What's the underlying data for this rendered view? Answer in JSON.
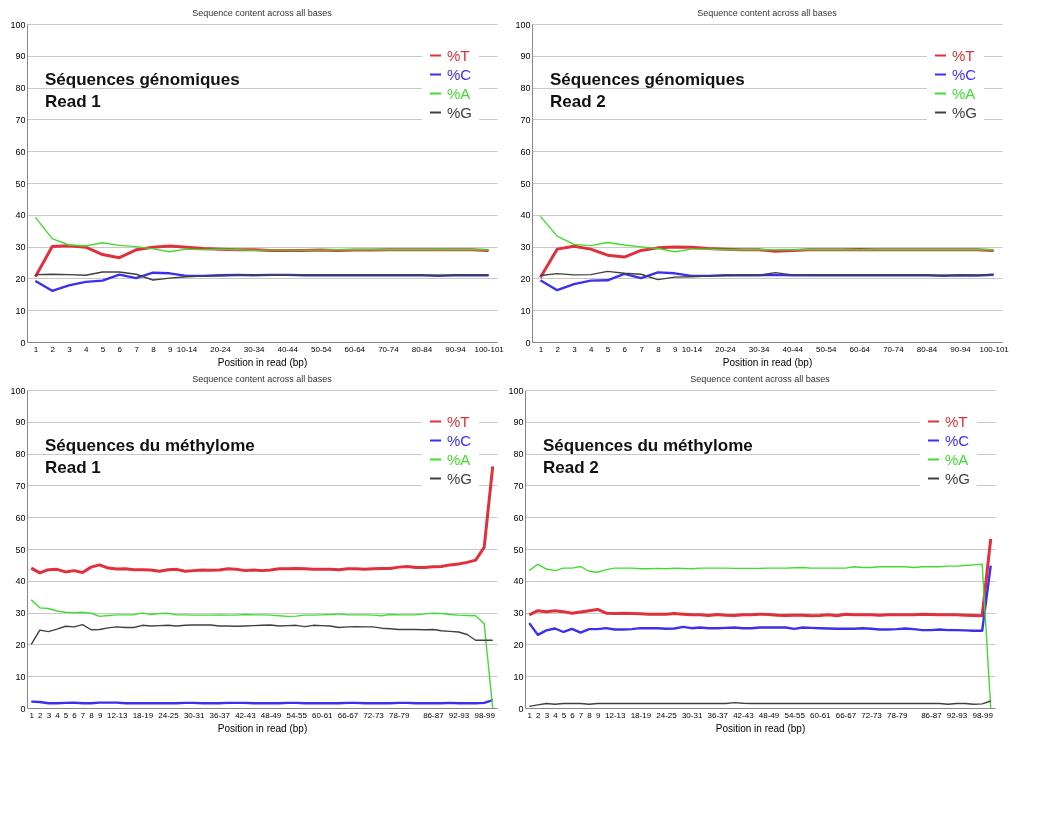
{
  "chart_data": [
    {
      "type": "line",
      "title": "Sequence content across all bases",
      "xlabel": "Position in read (bp)",
      "annotations": [
        "Séquences génomiques\nRead 1"
      ],
      "legend": "top right",
      "grid": "y",
      "ylim": [
        0,
        100
      ],
      "yticks": [
        0,
        10,
        20,
        30,
        40,
        50,
        60,
        70,
        80,
        90,
        100
      ],
      "categories": [
        "1",
        "2",
        "3",
        "4",
        "5",
        "6",
        "7",
        "8",
        "9",
        "10-14",
        null,
        "20-24",
        null,
        "30-34",
        null,
        "40-44",
        null,
        "50-54",
        null,
        "60-64",
        null,
        "70-74",
        null,
        "80-84",
        null,
        "90-94",
        null,
        "100-101"
      ],
      "series": [
        {
          "name": "%T",
          "color": "#e0303c",
          "values": [
            20.5,
            30,
            30.3,
            29.8,
            27.5,
            26.5,
            29,
            29.8,
            30.2,
            29.8,
            29.4,
            29.2,
            29,
            29,
            28.8,
            28.8,
            28.8,
            28.9,
            28.8,
            28.9,
            28.9,
            29,
            29,
            29,
            29,
            29,
            29,
            28.8
          ]
        },
        {
          "name": "%C",
          "color": "#3a30ee",
          "values": [
            19.2,
            16.1,
            17.8,
            18.9,
            19.3,
            21.2,
            20.1,
            21.8,
            21.6,
            20.8,
            20.8,
            21,
            21.1,
            21,
            21.1,
            21.1,
            21,
            21,
            21,
            21,
            21,
            21,
            21,
            21,
            20.8,
            21,
            21,
            21
          ]
        },
        {
          "name": "%A",
          "color": "#40dd30",
          "values": [
            39.2,
            32.5,
            30.5,
            30.2,
            31.2,
            30.4,
            30,
            29.3,
            28.4,
            29.2,
            29,
            29.2,
            29,
            28.8,
            28.9,
            28.9,
            28.8,
            28.9,
            29,
            29,
            29,
            29,
            29,
            29,
            29.1,
            29,
            29,
            29
          ]
        },
        {
          "name": "%G",
          "color": "#404040",
          "values": [
            21.2,
            21.3,
            21.2,
            21,
            22,
            22,
            21.3,
            19.5,
            20.1,
            20.5,
            20.7,
            20.8,
            21,
            21,
            21,
            21,
            21,
            21,
            21,
            21,
            21,
            21,
            21,
            21,
            21,
            21,
            21,
            21
          ]
        }
      ]
    },
    {
      "type": "line",
      "title": "Sequence content across all bases",
      "xlabel": "Position in read (bp)",
      "annotations": [
        "Séquences génomiques\nRead 2"
      ],
      "legend": "top right",
      "grid": "y",
      "ylim": [
        0,
        100
      ],
      "yticks": [
        0,
        10,
        20,
        30,
        40,
        50,
        60,
        70,
        80,
        90,
        100
      ],
      "categories": [
        "1",
        "2",
        "3",
        "4",
        "5",
        "6",
        "7",
        "8",
        "9",
        "10-14",
        null,
        "20-24",
        null,
        "30-34",
        null,
        "40-44",
        null,
        "50-54",
        null,
        "60-64",
        null,
        "70-74",
        null,
        "80-84",
        null,
        "90-94",
        null,
        "100-101"
      ],
      "series": [
        {
          "name": "%T",
          "color": "#e0303c",
          "values": [
            20.3,
            29.2,
            30.1,
            29.2,
            27.3,
            26.7,
            28.8,
            29.6,
            29.9,
            29.8,
            29.4,
            29.2,
            29,
            29,
            28.5,
            28.8,
            29,
            29,
            29,
            29.1,
            29,
            29,
            29,
            29,
            29,
            29,
            29,
            28.8
          ]
        },
        {
          "name": "%C",
          "color": "#3a30ee",
          "values": [
            19.4,
            16.3,
            18.2,
            19.3,
            19.4,
            21.4,
            20.1,
            21.9,
            21.6,
            20.8,
            20.8,
            21,
            21,
            21,
            21.1,
            21,
            21,
            21,
            21,
            21,
            21,
            21,
            21,
            21,
            20.8,
            21,
            20.9,
            21.1
          ]
        },
        {
          "name": "%A",
          "color": "#40dd30",
          "values": [
            39.5,
            33.3,
            30.7,
            30.3,
            31.3,
            30.5,
            29.9,
            29.4,
            28.4,
            29.2,
            29.2,
            29,
            29,
            29,
            29,
            29,
            29,
            29,
            29,
            29,
            29,
            29,
            29,
            29,
            29,
            29,
            29,
            29
          ]
        },
        {
          "name": "%G",
          "color": "#404040",
          "values": [
            20.9,
            21.5,
            21.1,
            21.2,
            22.2,
            21.6,
            21.3,
            19.6,
            20.4,
            20.5,
            20.7,
            20.9,
            21,
            21,
            21.8,
            21.1,
            21,
            21,
            21,
            21,
            21,
            21,
            21,
            21,
            21,
            21,
            21,
            21.3
          ]
        }
      ]
    },
    {
      "type": "line",
      "title": "Sequence content across all bases",
      "xlabel": "Position in read (bp)",
      "annotations": [
        "Séquences du méthylome\nRead 1"
      ],
      "legend": "top right",
      "grid": "y",
      "ylim": [
        0,
        100
      ],
      "yticks": [
        0,
        10,
        20,
        30,
        40,
        50,
        60,
        70,
        80,
        90,
        100
      ],
      "categories": [
        "1",
        "2",
        "3",
        "4",
        "5",
        "6",
        "7",
        "8",
        "9",
        null,
        "12-13",
        null,
        null,
        "18-19",
        null,
        null,
        "24-25",
        null,
        null,
        "30-31",
        null,
        null,
        "36-37",
        null,
        null,
        "42-43",
        null,
        null,
        "48-49",
        null,
        null,
        "54-55",
        null,
        null,
        "60-61",
        null,
        null,
        "66-67",
        null,
        null,
        "72-73",
        null,
        null,
        "78-79",
        null,
        null,
        null,
        "86-87",
        null,
        null,
        "92-93",
        null,
        null,
        "98-99",
        null
      ],
      "series": [
        {
          "name": "%T",
          "color": "#e0303c",
          "values": [
            44,
            42.5,
            43.5,
            43.6,
            42.8,
            43.2,
            42.6,
            44.3,
            45,
            44,
            43.7,
            43.8,
            43.5,
            43.5,
            43.4,
            43,
            43.5,
            43.6,
            43,
            43.2,
            43.4,
            43.3,
            43.4,
            43.8,
            43.6,
            43.2,
            43.4,
            43.2,
            43.4,
            43.8,
            43.8,
            43.9,
            43.8,
            43.6,
            43.6,
            43.6,
            43.5,
            43.8,
            43.8,
            43.6,
            43.8,
            43.9,
            43.9,
            44.3,
            44.5,
            44.2,
            44.2,
            44.4,
            44.5,
            45,
            45.3,
            45.8,
            46.5,
            50.5,
            76
          ]
        },
        {
          "name": "%C",
          "color": "#3a30ee",
          "values": [
            2,
            1.9,
            1.5,
            1.5,
            1.6,
            1.7,
            1.5,
            1.5,
            1.7,
            1.7,
            1.7,
            1.5,
            1.5,
            1.5,
            1.5,
            1.5,
            1.5,
            1.5,
            1.6,
            1.6,
            1.5,
            1.5,
            1.5,
            1.6,
            1.6,
            1.6,
            1.5,
            1.5,
            1.5,
            1.5,
            1.6,
            1.6,
            1.5,
            1.5,
            1.5,
            1.5,
            1.5,
            1.6,
            1.6,
            1.5,
            1.5,
            1.5,
            1.5,
            1.6,
            1.6,
            1.5,
            1.5,
            1.5,
            1.5,
            1.6,
            1.5,
            1.5,
            1.5,
            1.6,
            2.5
          ]
        },
        {
          "name": "%A",
          "color": "#40dd30",
          "values": [
            34,
            31.5,
            31.3,
            30.5,
            30.1,
            30,
            30.1,
            29.8,
            28.8,
            29.1,
            29.3,
            29.3,
            29.3,
            29.9,
            29.4,
            29.7,
            29.8,
            29.3,
            29.3,
            29.2,
            29.2,
            29.2,
            29.3,
            29.2,
            29.2,
            29.4,
            29.3,
            29.3,
            29.2,
            29,
            28.8,
            28.9,
            29.2,
            29.2,
            29.3,
            29.4,
            29.6,
            29.3,
            29.3,
            29.3,
            29.2,
            29,
            29.4,
            29.3,
            29.3,
            29.3,
            29.6,
            29.8,
            29.7,
            29.4,
            29.2,
            29.1,
            29,
            26.5,
            0
          ]
        },
        {
          "name": "%G",
          "color": "#404040",
          "values": [
            20,
            24.5,
            24,
            24.8,
            25.7,
            25.5,
            26.2,
            24.6,
            24.7,
            25.2,
            25.5,
            25.3,
            25.3,
            26,
            25.8,
            25.9,
            26,
            25.8,
            26,
            26.1,
            26.1,
            26.1,
            25.8,
            25.8,
            25.7,
            25.8,
            25.9,
            26,
            26.1,
            25.8,
            25.9,
            26,
            25.6,
            26,
            25.9,
            25.8,
            25.3,
            25.5,
            25.6,
            25.5,
            25.5,
            25.1,
            24.9,
            24.7,
            24.7,
            24.7,
            24.6,
            24.7,
            24.3,
            24.1,
            23.9,
            23.1,
            21.3,
            21.3,
            21.3
          ]
        }
      ]
    },
    {
      "type": "line",
      "title": "Sequence content across all bases",
      "xlabel": "Position in read (bp)",
      "annotations": [
        "Séquences du méthylome\nRead 2"
      ],
      "legend": "top right",
      "grid": "y",
      "ylim": [
        0,
        100
      ],
      "yticks": [
        0,
        10,
        20,
        30,
        40,
        50,
        60,
        70,
        80,
        90,
        100
      ],
      "categories": [
        "1",
        "2",
        "3",
        "4",
        "5",
        "6",
        "7",
        "8",
        "9",
        null,
        "12-13",
        null,
        null,
        "18-19",
        null,
        null,
        "24-25",
        null,
        null,
        "30-31",
        null,
        null,
        "36-37",
        null,
        null,
        "42-43",
        null,
        null,
        "48-49",
        null,
        null,
        "54-55",
        null,
        null,
        "60-61",
        null,
        null,
        "66-67",
        null,
        null,
        "72-73",
        null,
        null,
        "78-79",
        null,
        null,
        null,
        "86-87",
        null,
        null,
        "92-93",
        null,
        null,
        "98-99",
        null
      ],
      "series": [
        {
          "name": "%T",
          "color": "#e0303c",
          "values": [
            29.3,
            30.6,
            30.3,
            30.6,
            30.3,
            29.8,
            30.2,
            30.6,
            31,
            29.8,
            29.7,
            29.8,
            29.7,
            29.6,
            29.5,
            29.5,
            29.5,
            29.7,
            29.5,
            29.3,
            29.3,
            29.1,
            29.4,
            29.2,
            29.1,
            29.3,
            29.3,
            29.5,
            29.4,
            29.2,
            29.1,
            29.2,
            29.2,
            29,
            29.1,
            29.3,
            29,
            29.5,
            29.3,
            29.3,
            29.3,
            29.2,
            29.3,
            29.3,
            29.3,
            29.3,
            29.5,
            29.4,
            29.3,
            29.3,
            29.3,
            29.2,
            29.1,
            29,
            53.2
          ]
        },
        {
          "name": "%C",
          "color": "#3a30ee",
          "values": [
            26.7,
            23,
            24.4,
            25,
            23.9,
            24.9,
            23.7,
            24.8,
            24.8,
            25.1,
            24.7,
            24.7,
            24.8,
            25.1,
            25.1,
            25.1,
            24.9,
            25,
            25.5,
            25.1,
            25.3,
            25.1,
            25.1,
            25.2,
            25.3,
            25.1,
            25.1,
            25.3,
            25.3,
            25.3,
            25.3,
            24.9,
            25.3,
            25.2,
            25.1,
            25,
            24.9,
            24.9,
            24.9,
            25.1,
            24.9,
            24.7,
            24.7,
            24.8,
            25,
            24.8,
            24.5,
            24.5,
            24.7,
            24.5,
            24.5,
            24.4,
            24.3,
            24.3,
            44.8
          ]
        },
        {
          "name": "%A",
          "color": "#40dd30",
          "values": [
            43.3,
            45.2,
            43.7,
            43.2,
            44,
            44,
            44.5,
            43,
            42.7,
            43.5,
            44,
            44,
            44,
            43.8,
            43.8,
            43.9,
            43.8,
            44,
            43.9,
            43.8,
            44,
            44,
            44,
            44,
            43.9,
            43.9,
            43.9,
            43.9,
            44,
            44,
            44,
            44.1,
            44.2,
            44,
            44,
            44,
            44,
            44,
            44.4,
            44.2,
            44.2,
            44.4,
            44.4,
            44.4,
            44.4,
            44.2,
            44.4,
            44.4,
            44.4,
            44.6,
            44.6,
            44.8,
            45,
            45.2,
            0
          ]
        },
        {
          "name": "%G",
          "color": "#404040",
          "values": [
            0.5,
            1,
            1.4,
            1.2,
            1.4,
            1.4,
            1.4,
            1.2,
            1.4,
            1.4,
            1.4,
            1.4,
            1.4,
            1.4,
            1.4,
            1.4,
            1.4,
            1.4,
            1.4,
            1.4,
            1.4,
            1.4,
            1.4,
            1.4,
            1.7,
            1.5,
            1.4,
            1.4,
            1.4,
            1.4,
            1.4,
            1.4,
            1.4,
            1.4,
            1.4,
            1.4,
            1.4,
            1.4,
            1.4,
            1.4,
            1.4,
            1.4,
            1.4,
            1.4,
            1.4,
            1.4,
            1.4,
            1.4,
            1.4,
            1.2,
            1.4,
            1.4,
            1.2,
            1.3,
            2.2
          ]
        }
      ]
    }
  ]
}
